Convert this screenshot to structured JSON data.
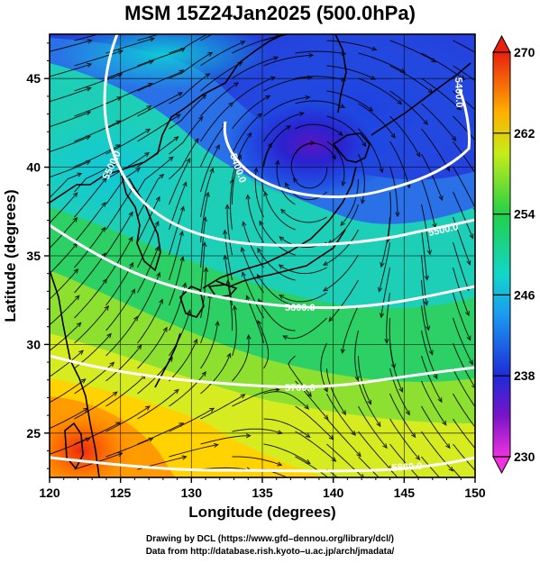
{
  "title": "MSM 15Z24Jan2025 (500.0hPa)",
  "chart_data": {
    "type": "map",
    "xlabel": "Longitude (degrees)",
    "ylabel": "Latitude  (degrees)",
    "xlim": [
      120,
      150
    ],
    "ylim": [
      22.5,
      47.5
    ],
    "xticks": [
      "120",
      "125",
      "130",
      "135",
      "140",
      "145",
      "150"
    ],
    "yticks": [
      "25",
      "30",
      "35",
      "40",
      "45"
    ],
    "colorbar": {
      "min": 230,
      "max": 270,
      "ticks": [
        "230",
        "238",
        "246",
        "254",
        "262",
        "270"
      ]
    },
    "contours": [
      {
        "label": "5400.0"
      },
      {
        "label": "5500.0"
      },
      {
        "label": "5600.0"
      },
      {
        "label": "5700.0"
      },
      {
        "label": "5800.0"
      }
    ]
  },
  "credits": {
    "line1": "Drawing by DCL (https://www.gfd–dennou.org/library/dcl/)",
    "line2": "Data from http://database.rish.kyoto–u.ac.jp/arch/jmadata/"
  }
}
